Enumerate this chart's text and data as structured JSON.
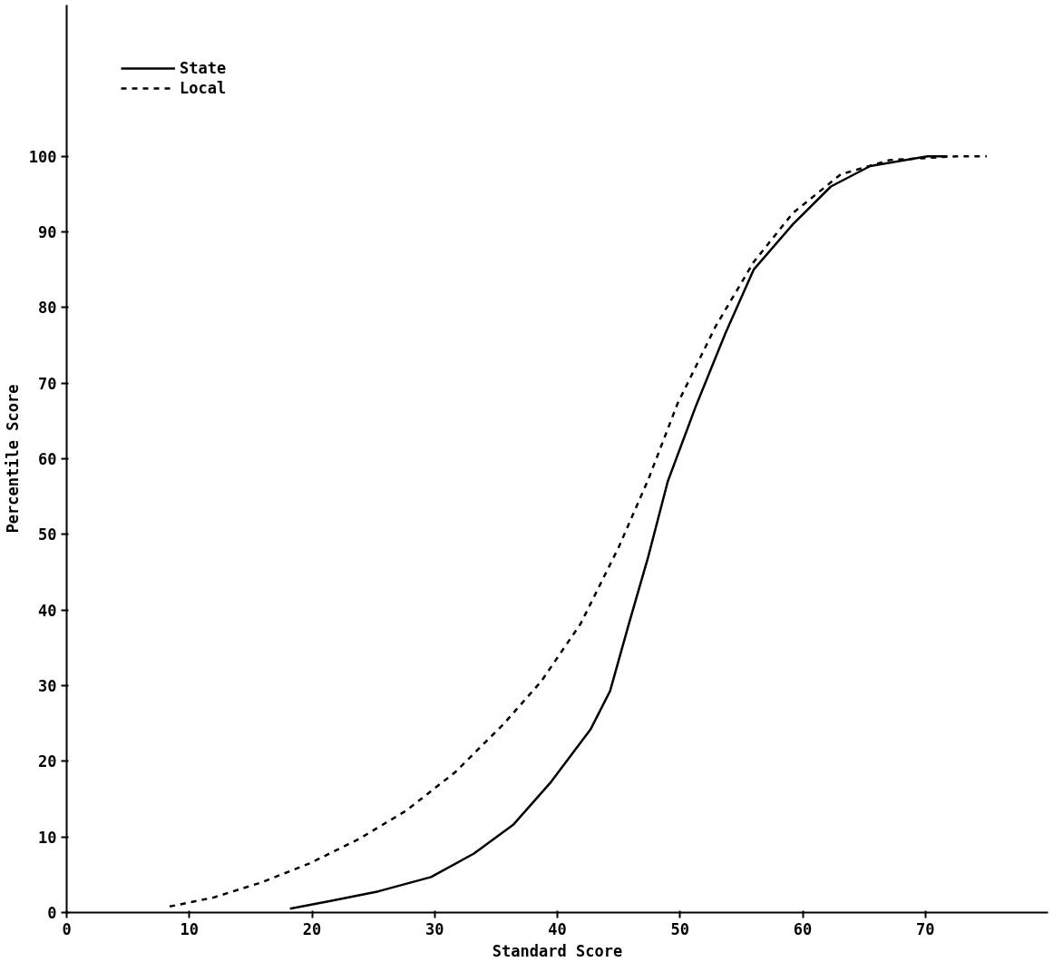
{
  "chart_data": {
    "type": "line",
    "xlabel": "Standard Score",
    "ylabel": "Percentile Score",
    "xlim": [
      0,
      80
    ],
    "ylim": [
      0,
      120
    ],
    "xticks": [
      0,
      10,
      20,
      30,
      40,
      50,
      60,
      70
    ],
    "yticks": [
      0,
      10,
      20,
      30,
      40,
      50,
      60,
      70,
      80,
      90,
      100
    ],
    "grid": false,
    "legend": "top left",
    "series": [
      {
        "name": "State",
        "color": "#000000",
        "line_style": "solid",
        "x": [
          18.2,
          21.4,
          25.4,
          29.7,
          33.2,
          36.4,
          39.5,
          42.7,
          44.3,
          45.8,
          47.4,
          49,
          51.3,
          53.7,
          56,
          59.2,
          62.3,
          65.5,
          70.2,
          71.8
        ],
        "values": [
          0.5,
          1.5,
          2.8,
          4.7,
          7.8,
          11.6,
          17.3,
          24.2,
          29.3,
          38,
          47,
          57,
          67,
          76.6,
          85,
          91,
          96,
          98.7,
          100,
          100
        ]
      },
      {
        "name": "Local",
        "color": "#000000",
        "line_style": "dashed",
        "x": [
          8.4,
          12,
          15.9,
          19.8,
          23.8,
          27.7,
          31.7,
          35.6,
          38.7,
          41.9,
          45,
          47.4,
          49.8,
          52.9,
          56,
          59.2,
          63.1,
          67.1,
          72.6,
          75
        ],
        "values": [
          0.8,
          2,
          4,
          6.5,
          9.7,
          13.5,
          18.6,
          24.9,
          30.6,
          38.2,
          48.3,
          57.2,
          67.3,
          77.5,
          86,
          92.5,
          97.6,
          99.5,
          100,
          100
        ]
      }
    ]
  }
}
